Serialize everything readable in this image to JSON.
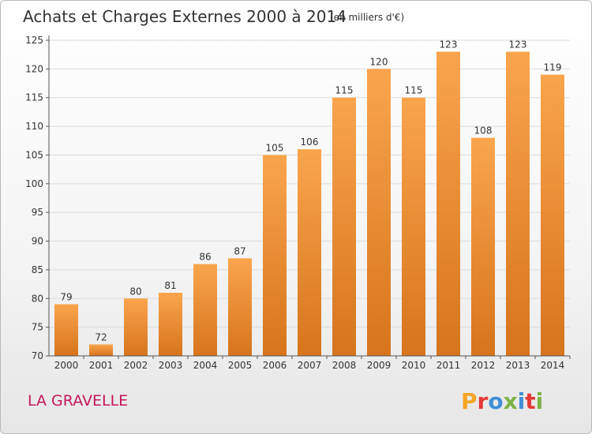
{
  "title": "Achats et Charges Externes 2000 à 2014",
  "unit": "(en milliers d'€)",
  "commune": "LA GRAVELLE",
  "logo": {
    "text": "Proxiti",
    "letters": [
      "P",
      "r",
      "o",
      "x",
      "i",
      "t",
      "i"
    ],
    "colors": [
      "#f5a623",
      "#e53935",
      "#3f8fd8",
      "#7cb342",
      "#3f8fd8",
      "#e53935",
      "#7cb342"
    ]
  },
  "colors": {
    "bar_top": "#f9a54c",
    "bar_bottom": "#d7741c",
    "grid": "#dcdcdc",
    "commune": "#c2185b"
  },
  "chart_data": {
    "type": "bar",
    "title": "Achats et Charges Externes 2000 à 2014",
    "ylabel": "",
    "xlabel": "",
    "ylim": [
      70,
      125
    ],
    "yticks": [
      70,
      75,
      80,
      85,
      90,
      95,
      100,
      105,
      110,
      115,
      120,
      125
    ],
    "grid": true,
    "categories": [
      "2000",
      "2001",
      "2002",
      "2003",
      "2004",
      "2005",
      "2006",
      "2007",
      "2008",
      "2009",
      "2010",
      "2011",
      "2012",
      "2013",
      "2014"
    ],
    "values": [
      79,
      72,
      80,
      81,
      86,
      87,
      105,
      106,
      115,
      120,
      115,
      123,
      108,
      123,
      119
    ]
  }
}
